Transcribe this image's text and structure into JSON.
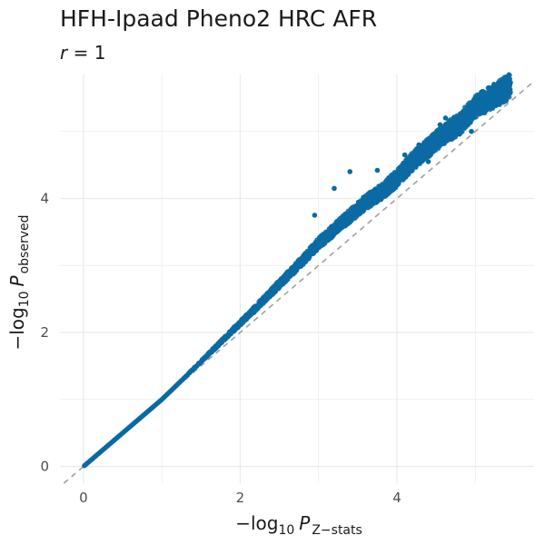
{
  "chart_data": {
    "type": "scatter",
    "title": "HFH-Ipaad Pheno2 HRC AFR",
    "subtitle": {
      "symbol": "r",
      "operator": "=",
      "value": "1"
    },
    "xlabel": {
      "prefix": "−log",
      "subscript_base": "10",
      "symbol": "P",
      "subscript": "Z−stats"
    },
    "ylabel": {
      "prefix": "−log",
      "subscript_base": "10",
      "symbol": "P",
      "subscript": "observed"
    },
    "xlim": [
      -0.3,
      5.75
    ],
    "ylim": [
      -0.25,
      5.85
    ],
    "x_ticks": [
      0,
      2,
      4
    ],
    "y_ticks": [
      0,
      2,
      4
    ],
    "x_tick_labels": [
      "0",
      "2",
      "4"
    ],
    "y_tick_labels": [
      "0",
      "2",
      "4"
    ],
    "grid": true,
    "reference_line": "y = x (dashed)",
    "point_color": "#0b6aa3",
    "line_color": "#a0a0a0",
    "x": [
      0.01,
      0.3,
      0.6,
      1.0,
      1.4,
      1.8,
      2.2,
      2.5,
      2.8,
      3.0,
      3.2,
      3.4,
      3.6,
      3.8,
      4.0,
      4.2,
      4.4,
      4.6,
      4.8,
      5.0,
      5.45
    ],
    "y": [
      0.01,
      0.3,
      0.6,
      1.0,
      1.45,
      1.9,
      2.35,
      2.7,
      3.05,
      3.3,
      3.5,
      3.7,
      3.9,
      4.05,
      4.25,
      4.5,
      4.7,
      4.9,
      5.05,
      5.3,
      5.6
    ],
    "outliers": [
      {
        "x": 3.4,
        "y": 4.4
      },
      {
        "x": 3.75,
        "y": 4.42
      },
      {
        "x": 4.1,
        "y": 4.65
      },
      {
        "x": 4.28,
        "y": 4.8
      },
      {
        "x": 4.55,
        "y": 5.1
      },
      {
        "x": 4.62,
        "y": 5.2
      },
      {
        "x": 4.85,
        "y": 5.3
      },
      {
        "x": 5.05,
        "y": 5.4
      },
      {
        "x": 3.2,
        "y": 4.15
      },
      {
        "x": 2.95,
        "y": 3.75
      },
      {
        "x": 4.95,
        "y": 5.0
      },
      {
        "x": 4.4,
        "y": 4.55
      }
    ]
  }
}
